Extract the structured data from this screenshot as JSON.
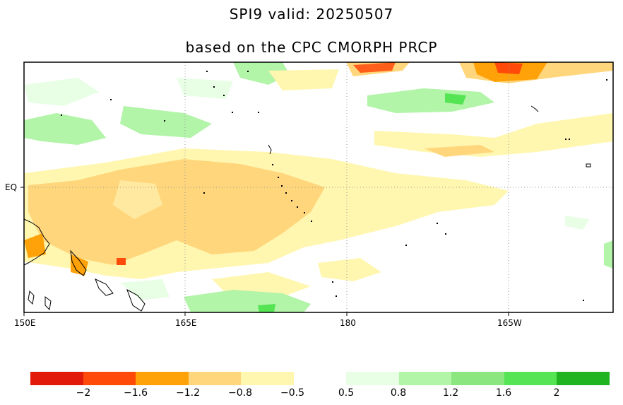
{
  "title": "SPI9   valid: 20250507",
  "subtitle": "based on the CPC CMORPH PRCP",
  "map": {
    "x_ticks": [
      "150E",
      "165E",
      "180",
      "165W"
    ],
    "y_ticks": [
      "EQ"
    ]
  },
  "colorbar": {
    "dry_colors": [
      "#e11a0a",
      "#ff4a0a",
      "#ffa20a",
      "#ffd67c",
      "#fff7b0"
    ],
    "wet_colors": [
      "#e8ffe6",
      "#b2f4a8",
      "#8ce680",
      "#54e454",
      "#20b420"
    ],
    "dry_labels": [
      "-2",
      "-1.6",
      "-1.2",
      "-0.8",
      "-0.5"
    ],
    "wet_labels": [
      "0.5",
      "0.8",
      "1.2",
      "1.6",
      "2"
    ]
  }
}
